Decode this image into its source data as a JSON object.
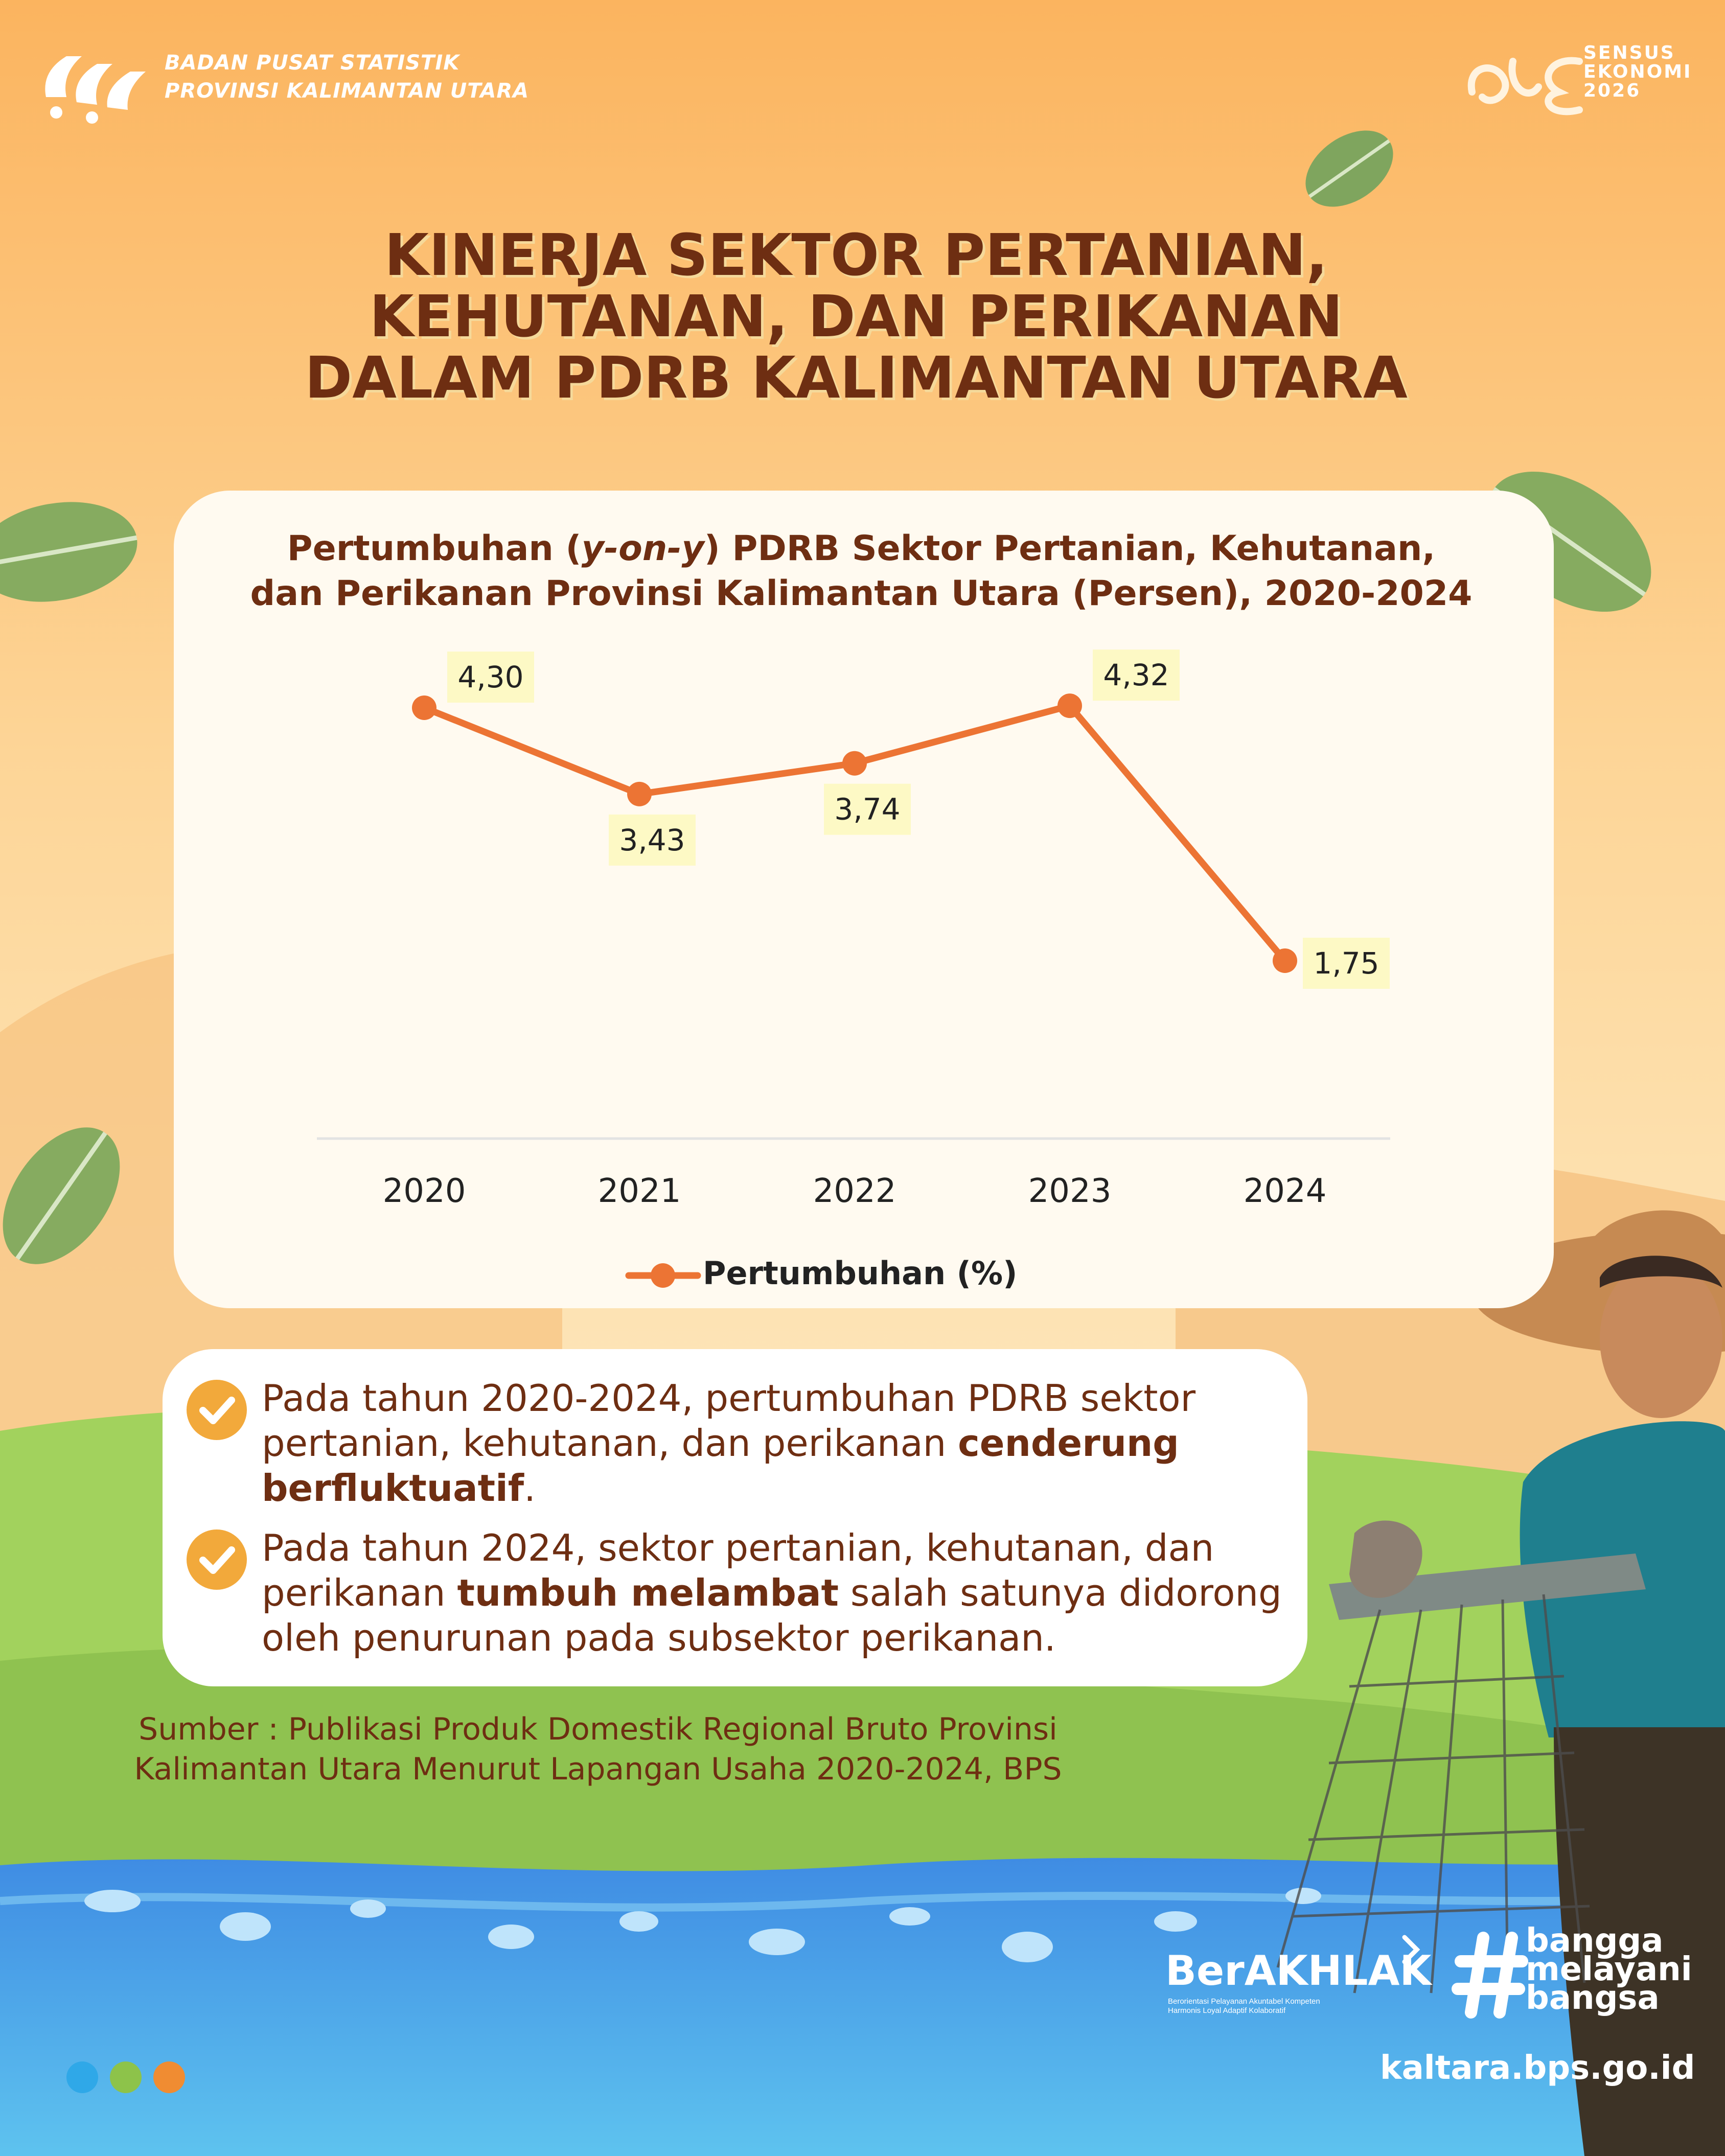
{
  "header": {
    "org_line1": "BADAN PUSAT STATISTIK",
    "org_line2": "PROVINSI KALIMANTAN UTARA",
    "sensus_line1": "SENSUS",
    "sensus_line2": "EKONOMI",
    "sensus_line3": "2026"
  },
  "title": {
    "line1": "KINERJA SEKTOR PERTANIAN,",
    "line2": "KEHUTANAN, DAN PERIKANAN",
    "line3": "DALAM PDRB KALIMANTAN UTARA"
  },
  "chart_title": {
    "line1_before": "Pertumbuhan (",
    "line1_italic": "y-on-y",
    "line1_after": ") PDRB Sektor Pertanian, Kehutanan,",
    "line2": "dan Perikanan Provinsi Kalimantan Utara (Persen), 2020-2024"
  },
  "chart_data": {
    "type": "line",
    "title": "Pertumbuhan (y-on-y) PDRB Sektor Pertanian, Kehutanan, dan Perikanan Provinsi Kalimantan Utara (Persen), 2020-2024",
    "categories": [
      "2020",
      "2021",
      "2022",
      "2023",
      "2024"
    ],
    "series": [
      {
        "name": "Pertumbuhan (%)",
        "values": [
          4.3,
          3.43,
          3.74,
          4.32,
          1.75
        ],
        "labels": [
          "4,30",
          "3,43",
          "3,74",
          "4,32",
          "1,75"
        ],
        "label_position": [
          "above",
          "below",
          "below",
          "above",
          "right"
        ]
      }
    ],
    "xlabel": "",
    "ylabel": "",
    "ylim": [
      0,
      4.5
    ],
    "grid": false,
    "legend": "bottom",
    "colors": {
      "line": "#ec7434",
      "label_bg": "#fdf9c5"
    }
  },
  "bullets": [
    {
      "plain1": "Pada tahun 2020-2024, pertumbuhan PDRB sektor",
      "plain2": "pertanian, kehutanan, dan perikanan ",
      "bold1": "cenderung",
      "bold2": "berfluktuatif",
      "plain3": "."
    },
    {
      "plain1": "Pada tahun 2024, sektor pertanian, kehutanan, dan",
      "plain2": "perikanan ",
      "bold": "tumbuh melambat",
      "plain3": " salah satunya didorong",
      "plain4": "oleh penurunan pada subsektor perikanan."
    }
  ],
  "source": {
    "line1": "Sumber : Publikasi Produk Domestik Regional Bruto Provinsi",
    "line2": "Kalimantan Utara Menurut Lapangan Usaha 2020-2024, BPS"
  },
  "footer": {
    "berakhlak": "BerAKHLAK",
    "berakhlak_sub1": "Berorientasi Pelayanan Akuntabel Kompeten",
    "berakhlak_sub2": "Harmonis Loyal Adaptif Kolaboratif",
    "bmb_line1": "bangga",
    "bmb_line2": "melayani",
    "bmb_line3": "bangsa",
    "website": "kaltara.bps.go.id",
    "dot_colors": [
      "#2fa8e8",
      "#8dc34a",
      "#f08c32"
    ]
  },
  "colors": {
    "title_brown": "#6e2e12",
    "sky_top": "#fbb963",
    "sky_mid": "#fddfa3",
    "grass": "#a4d35e",
    "water": "#3f9be8"
  }
}
